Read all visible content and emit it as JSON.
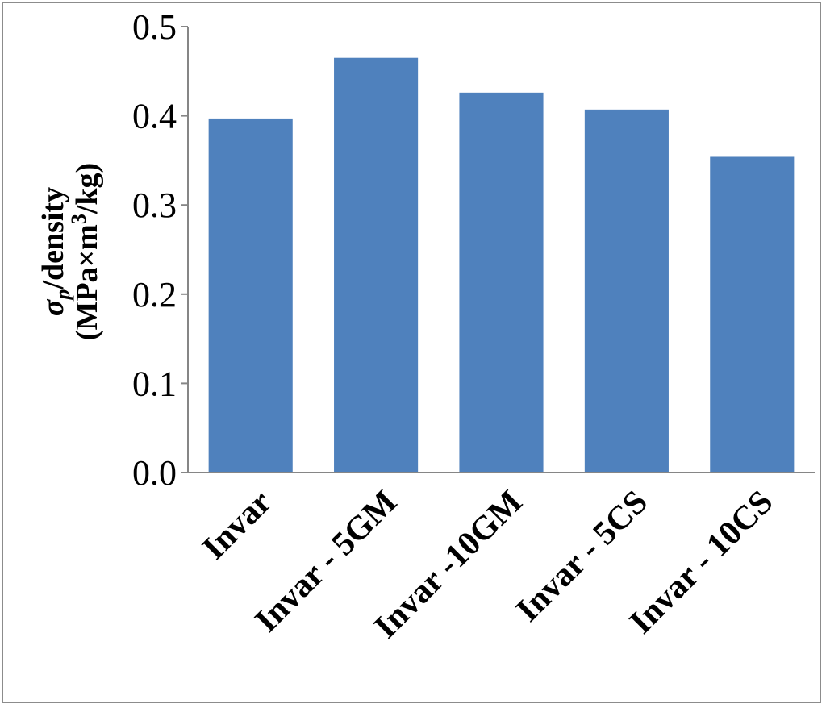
{
  "chart_data": {
    "type": "bar",
    "categories": [
      "Invar",
      "Invar - 5GM",
      "Invar -10GM",
      "Invar - 5CS",
      "Invar - 10CS"
    ],
    "series": [
      {
        "values": [
          0.397,
          0.465,
          0.426,
          0.407,
          0.354
        ]
      }
    ],
    "title": "",
    "xlabel": "",
    "ylabel": {
      "line1_symbol": "σ",
      "line1_subscript": "p",
      "line1_rest": "/density",
      "line2_before_sup": "(MPa×m",
      "line2_sup": "3",
      "line2_after_sup": "/kg)"
    },
    "ylim": [
      0,
      0.5
    ],
    "yticks": [
      "0.0",
      "0.1",
      "0.2",
      "0.3",
      "0.4",
      "0.5"
    ],
    "bar_color": "#4f81bd",
    "axis_color": "#868686",
    "grid": false,
    "legend": "none"
  }
}
